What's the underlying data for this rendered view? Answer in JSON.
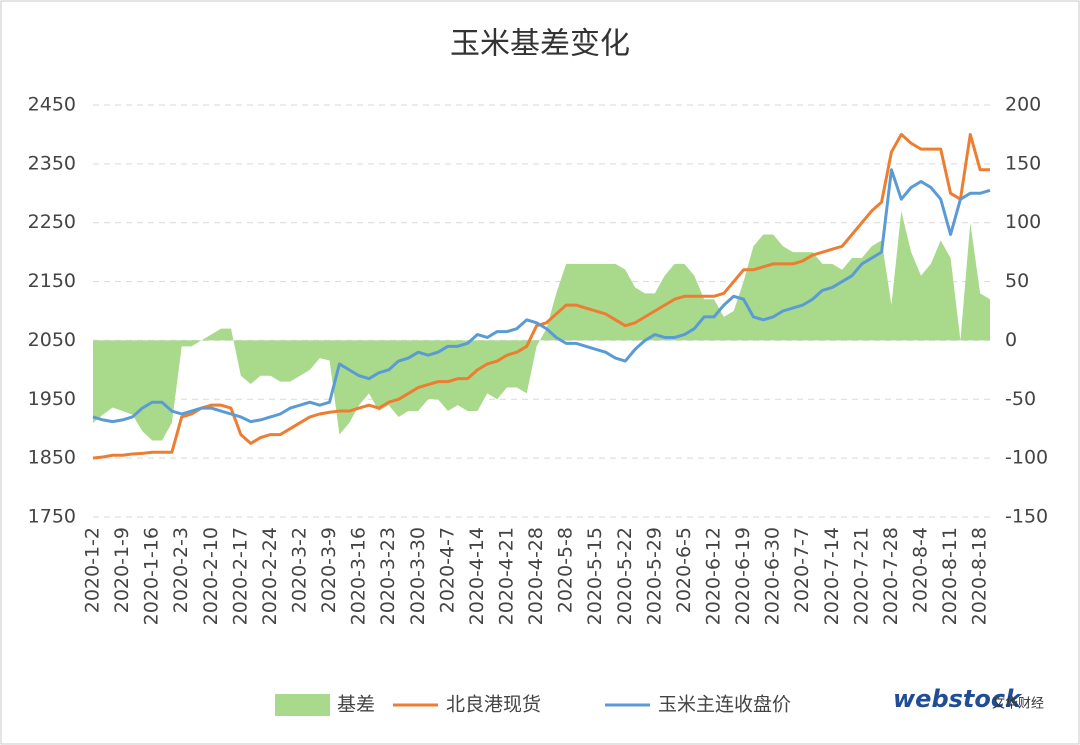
{
  "chart_data": {
    "type": "area_line",
    "title": "玉米基差变化",
    "categories": [
      "2020-1-2",
      null,
      null,
      "2020-1-9",
      null,
      null,
      "2020-1-16",
      null,
      null,
      "2020-2-3",
      null,
      null,
      "2020-2-10",
      null,
      null,
      "2020-2-17",
      null,
      null,
      "2020-2-24",
      null,
      null,
      "2020-3-2",
      null,
      null,
      "2020-3-9",
      null,
      null,
      "2020-3-16",
      null,
      null,
      "2020-3-23",
      null,
      null,
      "2020-3-30",
      null,
      null,
      "2020-4-7",
      null,
      null,
      "2020-4-14",
      null,
      null,
      "2020-4-21",
      null,
      null,
      "2020-4-28",
      null,
      null,
      "2020-5-8",
      null,
      null,
      "2020-5-15",
      null,
      null,
      "2020-5-22",
      null,
      null,
      "2020-5-29",
      null,
      null,
      "2020-6-5",
      null,
      null,
      "2020-6-12",
      null,
      null,
      "2020-6-19",
      null,
      null,
      "2020-6-30",
      null,
      null,
      "2020-7-7",
      null,
      null,
      "2020-7-14",
      null,
      null,
      "2020-7-21",
      null,
      null,
      "2020-7-28",
      null,
      null,
      "2020-8-4",
      null,
      null,
      "2020-8-11",
      null,
      null,
      "2020-8-18",
      null
    ],
    "series": [
      {
        "name": "基差",
        "type": "area",
        "axis": "y2",
        "color": "#a9d98a",
        "values": [
          -70,
          -63,
          -57,
          -60,
          -63,
          -77,
          -85,
          -85,
          -70,
          -5,
          -5,
          0,
          5,
          10,
          10,
          -30,
          -37,
          -30,
          -30,
          -35,
          -35,
          -30,
          -25,
          -15,
          -17,
          -80,
          -70,
          -55,
          -45,
          -60,
          -55,
          -65,
          -60,
          -60,
          -50,
          -50,
          -60,
          -55,
          -60,
          -60,
          -45,
          -50,
          -40,
          -40,
          -45,
          -5,
          10,
          40,
          65,
          65,
          65,
          65,
          65,
          65,
          60,
          45,
          40,
          40,
          55,
          65,
          65,
          55,
          35,
          35,
          20,
          25,
          50,
          80,
          90,
          90,
          80,
          75,
          75,
          75,
          65,
          65,
          60,
          70,
          70,
          80,
          85,
          30,
          110,
          75,
          55,
          65,
          85,
          70,
          0,
          100,
          40,
          35
        ]
      },
      {
        "name": "北良港现货",
        "type": "line",
        "color": "#ed7d31",
        "values": [
          1850,
          1852,
          1855,
          1855,
          1857,
          1858,
          1860,
          1860,
          1860,
          1920,
          1925,
          1935,
          1940,
          1940,
          1935,
          1890,
          1875,
          1885,
          1890,
          1890,
          1900,
          1910,
          1920,
          1925,
          1928,
          1930,
          1930,
          1935,
          1940,
          1935,
          1945,
          1950,
          1960,
          1970,
          1975,
          1980,
          1980,
          1985,
          1985,
          2000,
          2010,
          2015,
          2025,
          2030,
          2040,
          2075,
          2080,
          2095,
          2110,
          2110,
          2105,
          2100,
          2095,
          2085,
          2075,
          2080,
          2090,
          2100,
          2110,
          2120,
          2125,
          2125,
          2125,
          2125,
          2130,
          2150,
          2170,
          2170,
          2175,
          2180,
          2180,
          2180,
          2185,
          2195,
          2200,
          2205,
          2210,
          2230,
          2250,
          2270,
          2285,
          2370,
          2400,
          2385,
          2375,
          2375,
          2375,
          2300,
          2290,
          2400,
          2340,
          2340
        ]
      },
      {
        "name": "玉米主连收盘价",
        "type": "line",
        "color": "#5b9bd5",
        "values": [
          1920,
          1915,
          1912,
          1915,
          1920,
          1935,
          1945,
          1945,
          1930,
          1925,
          1930,
          1935,
          1935,
          1930,
          1925,
          1920,
          1912,
          1915,
          1920,
          1925,
          1935,
          1940,
          1945,
          1940,
          1945,
          2010,
          2000,
          1990,
          1985,
          1995,
          2000,
          2015,
          2020,
          2030,
          2025,
          2030,
          2040,
          2040,
          2045,
          2060,
          2055,
          2065,
          2065,
          2070,
          2085,
          2080,
          2070,
          2055,
          2045,
          2045,
          2040,
          2035,
          2030,
          2020,
          2015,
          2035,
          2050,
          2060,
          2055,
          2055,
          2060,
          2070,
          2090,
          2090,
          2110,
          2125,
          2120,
          2090,
          2085,
          2090,
          2100,
          2105,
          2110,
          2120,
          2135,
          2140,
          2150,
          2160,
          2180,
          2190,
          2200,
          2340,
          2290,
          2310,
          2320,
          2310,
          2290,
          2230,
          2290,
          2300,
          2300,
          2305
        ]
      }
    ],
    "ylim": [
      1750,
      2450
    ],
    "yticks": [
      1750,
      1850,
      1950,
      2050,
      2150,
      2250,
      2350,
      2450
    ],
    "y2lim": [
      -150,
      200
    ],
    "y2ticks": [
      -150,
      -100,
      -50,
      0,
      50,
      100,
      150,
      200
    ],
    "grid": true,
    "legend": "bottom",
    "watermark": [
      "webstock",
      "文华财经"
    ]
  }
}
